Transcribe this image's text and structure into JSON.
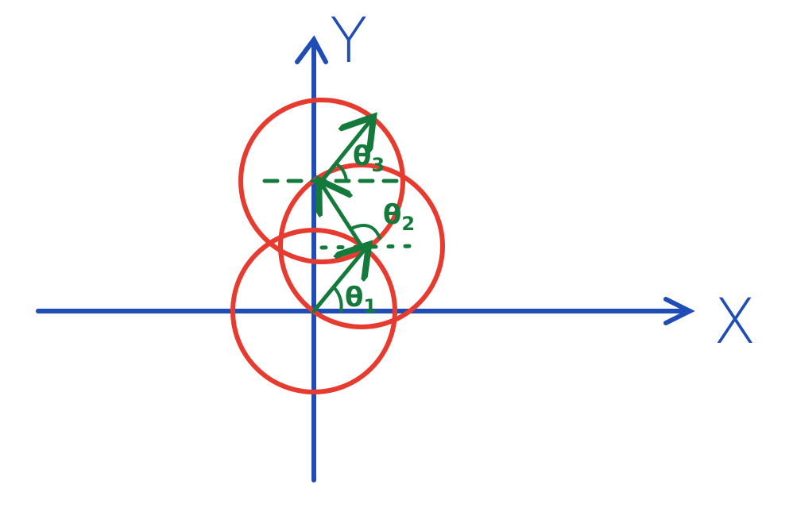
{
  "axes": {
    "x_label": "X",
    "y_label": "Y",
    "color": "#1f4db5"
  },
  "circles": {
    "color": "#e63b2e",
    "count": 3
  },
  "vectors": {
    "color": "#137a3c",
    "angles": [
      {
        "symbol": "θ",
        "subscript": "1"
      },
      {
        "symbol": "θ",
        "subscript": "2"
      },
      {
        "symbol": "θ",
        "subscript": "3"
      }
    ]
  }
}
